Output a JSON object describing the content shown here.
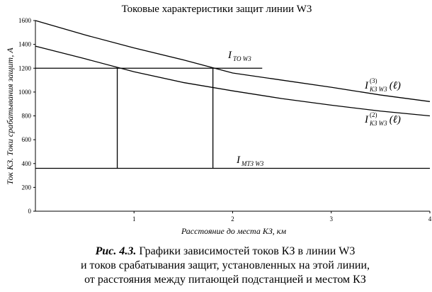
{
  "chart_data": {
    "type": "line",
    "title": "Токовые характеристики защит линии W3",
    "x_label": "Расстояние до места КЗ, км",
    "y_label": "Ток КЗ. Токи срабатывания защит, А",
    "xlim": [
      0,
      4
    ],
    "xticks": [
      1,
      2,
      3,
      4
    ],
    "ylim": [
      0,
      1600
    ],
    "yticks": [
      0,
      200,
      400,
      600,
      800,
      1000,
      1200,
      1400,
      1600
    ],
    "grid": false,
    "series": [
      {
        "label": {
          "main": "I",
          "sup": "(3)",
          "sub": "КЗ W3",
          "arg": "(ℓ)"
        },
        "color": "#000000",
        "x": [
          0,
          0.5,
          1,
          1.5,
          2,
          2.5,
          3,
          3.5,
          4
        ],
        "values": [
          1600,
          1480,
          1370,
          1270,
          1160,
          1100,
          1040,
          975,
          920
        ]
      },
      {
        "label": {
          "main": "I",
          "sup": "(2)",
          "sub": "КЗ W3",
          "arg": "(ℓ)"
        },
        "color": "#000000",
        "x": [
          0,
          0.5,
          1,
          1.5,
          2,
          2.5,
          3,
          3.5,
          4
        ],
        "values": [
          1385,
          1280,
          1170,
          1080,
          1010,
          945,
          890,
          840,
          800
        ]
      },
      {
        "label": {
          "main": "I",
          "sub": "ТО W3"
        },
        "color": "#000000",
        "x": [
          0,
          2.3
        ],
        "values": [
          1200,
          1200
        ]
      },
      {
        "label": {
          "main": "I",
          "sub": "МТЗ W3"
        },
        "color": "#000000",
        "x": [
          0,
          4
        ],
        "values": [
          360,
          360
        ]
      },
      {
        "color": "#000000",
        "x": [
          0.83,
          0.83
        ],
        "values": [
          360,
          1200
        ]
      },
      {
        "color": "#000000",
        "x": [
          1.8,
          1.8
        ],
        "values": [
          360,
          1200
        ]
      }
    ]
  },
  "caption": {
    "label": "Рис. 4.3.",
    "lines": [
      "Графики зависимостей токов КЗ в линии W3",
      "и токов срабатывания защит, установленных на этой линии,",
      "от расстояния между питающей подстанцией и местом КЗ"
    ]
  }
}
